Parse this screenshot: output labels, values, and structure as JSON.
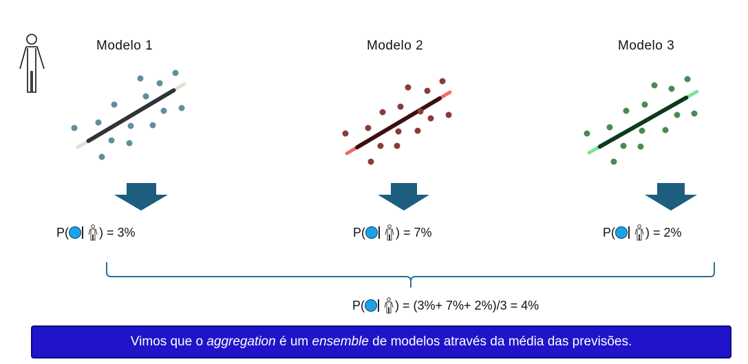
{
  "models": [
    {
      "title": "Modelo 1",
      "probability_text": ") = 3%",
      "line_color": "#2f3436",
      "line_tip": "#dfe3d0",
      "point_color": "#5f8f9e"
    },
    {
      "title": "Modelo 2",
      "probability_text": ") = 7%",
      "line_color": "#3a0f10",
      "line_tip": "#f26a6a",
      "point_color": "#8b3a3a"
    },
    {
      "title": "Modelo 3",
      "probability_text": ") = 2%",
      "line_color": "#0d3a1a",
      "line_tip": "#7be49a",
      "point_color": "#4a8a55"
    }
  ],
  "prefix": "P(",
  "aggregate_text": ") = (3%+ 7%+ 2%)/3 = 4%",
  "banner": {
    "part1": "Vimos que o ",
    "italic1": "aggregation",
    "part2": " é um ",
    "italic2": "ensemble",
    "part3": " de modelos através da média das previsões."
  },
  "colors": {
    "arrow": "#1c5d80",
    "brace": "#2c6f93",
    "dot": "#1ba3e6",
    "banner": "#1f14c9"
  }
}
